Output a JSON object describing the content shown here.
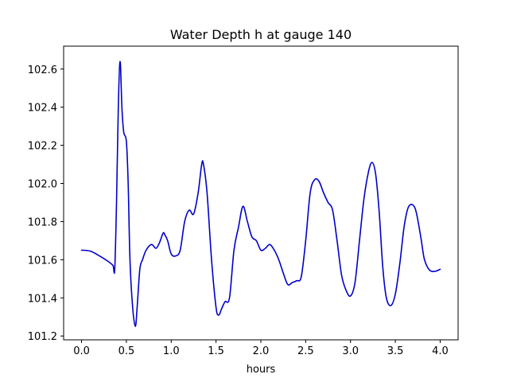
{
  "chart_data": {
    "type": "line",
    "title": "Water Depth h at gauge 140",
    "xlabel": "hours",
    "ylabel": "",
    "xlim": [
      -0.2,
      4.2
    ],
    "ylim": [
      101.18,
      102.72
    ],
    "x_ticks": [
      0.0,
      0.5,
      1.0,
      1.5,
      2.0,
      2.5,
      3.0,
      3.5,
      4.0
    ],
    "x_tick_labels": [
      "0.0",
      "0.5",
      "1.0",
      "1.5",
      "2.0",
      "2.5",
      "3.0",
      "3.5",
      "4.0"
    ],
    "y_ticks": [
      101.2,
      101.4,
      101.6,
      101.8,
      102.0,
      102.2,
      102.4,
      102.6
    ],
    "y_tick_labels": [
      "101.2",
      "101.4",
      "101.6",
      "101.8",
      "102.0",
      "102.2",
      "102.4",
      "102.6"
    ],
    "grid": false,
    "series": [
      {
        "color": "#0000cc",
        "x": [
          0.0,
          0.1,
          0.2,
          0.3,
          0.35,
          0.37,
          0.39,
          0.41,
          0.43,
          0.45,
          0.47,
          0.5,
          0.52,
          0.54,
          0.57,
          0.6,
          0.62,
          0.65,
          0.68,
          0.72,
          0.78,
          0.83,
          0.87,
          0.91,
          0.93,
          0.96,
          1.0,
          1.05,
          1.1,
          1.15,
          1.2,
          1.25,
          1.3,
          1.34,
          1.36,
          1.4,
          1.45,
          1.5,
          1.53,
          1.56,
          1.6,
          1.65,
          1.7,
          1.75,
          1.8,
          1.85,
          1.9,
          1.95,
          2.0,
          2.05,
          2.1,
          2.15,
          2.2,
          2.25,
          2.3,
          2.35,
          2.4,
          2.45,
          2.5,
          2.55,
          2.6,
          2.65,
          2.7,
          2.75,
          2.8,
          2.85,
          2.9,
          2.95,
          3.0,
          3.05,
          3.1,
          3.15,
          3.2,
          3.24,
          3.28,
          3.32,
          3.36,
          3.4,
          3.45,
          3.5,
          3.55,
          3.6,
          3.65,
          3.72,
          3.78,
          3.82,
          3.86,
          3.9,
          3.95,
          4.0
        ],
        "y": [
          101.65,
          101.645,
          101.62,
          101.59,
          101.57,
          101.55,
          101.9,
          102.4,
          102.64,
          102.4,
          102.27,
          102.22,
          102.0,
          101.6,
          101.35,
          101.25,
          101.35,
          101.55,
          101.6,
          101.65,
          101.68,
          101.66,
          101.69,
          101.74,
          101.73,
          101.7,
          101.63,
          101.62,
          101.65,
          101.8,
          101.86,
          101.84,
          101.95,
          102.1,
          102.1,
          101.95,
          101.6,
          101.35,
          101.31,
          101.34,
          101.38,
          101.4,
          101.65,
          101.77,
          101.88,
          101.8,
          101.72,
          101.7,
          101.65,
          101.66,
          101.68,
          101.65,
          101.6,
          101.53,
          101.47,
          101.48,
          101.49,
          101.51,
          101.7,
          101.95,
          102.02,
          102.01,
          101.95,
          101.9,
          101.86,
          101.7,
          101.52,
          101.44,
          101.41,
          101.48,
          101.7,
          101.92,
          102.06,
          102.11,
          102.05,
          101.85,
          101.56,
          101.4,
          101.36,
          101.42,
          101.58,
          101.78,
          101.88,
          101.87,
          101.73,
          101.61,
          101.56,
          101.54,
          101.54,
          101.55
        ]
      }
    ]
  }
}
